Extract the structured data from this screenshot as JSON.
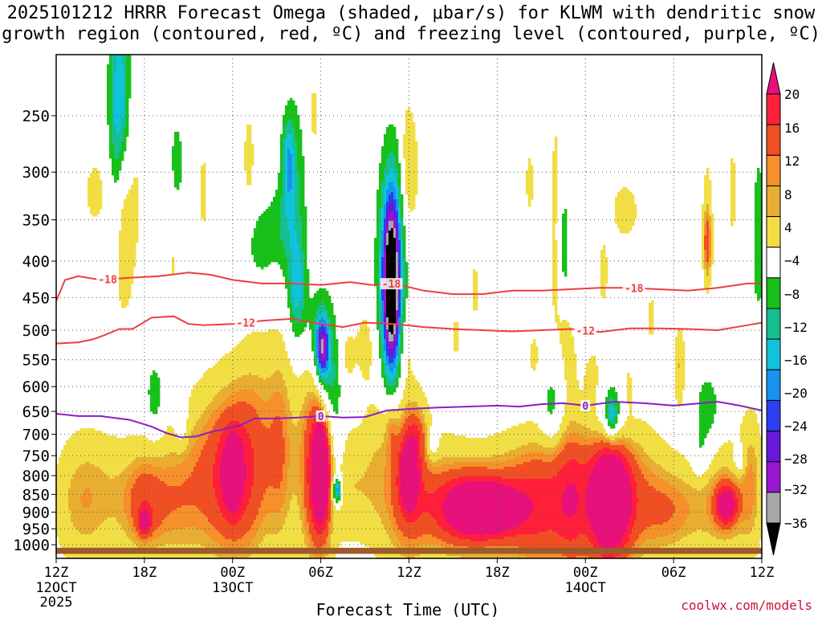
{
  "chart_data": {
    "type": "heatmap",
    "title_line1": "2025101212 HRRR Forecast Omega (shaded, μbar/s) for KLWM with dendritic snow",
    "title_line2": "growth region (contoured, red, ºC) and freezing level (contoured, purple, ºC)",
    "xlabel": "Forecast Time (UTC)",
    "ylabel": "",
    "x_range_hours": [
      0,
      48
    ],
    "y_range_mb": [
      1050,
      200
    ],
    "y_ticks": [
      250,
      300,
      350,
      400,
      450,
      500,
      550,
      600,
      650,
      700,
      750,
      800,
      850,
      900,
      950,
      1000
    ],
    "x_ticks": [
      {
        "hour": 0,
        "label": "12Z",
        "sub1": "12OCT",
        "sub2": "2025"
      },
      {
        "hour": 6,
        "label": "18Z",
        "sub1": "",
        "sub2": ""
      },
      {
        "hour": 12,
        "label": "00Z",
        "sub1": "13OCT",
        "sub2": ""
      },
      {
        "hour": 18,
        "label": "06Z",
        "sub1": "",
        "sub2": ""
      },
      {
        "hour": 24,
        "label": "12Z",
        "sub1": "",
        "sub2": ""
      },
      {
        "hour": 30,
        "label": "18Z",
        "sub1": "",
        "sub2": ""
      },
      {
        "hour": 36,
        "label": "00Z",
        "sub1": "14OCT",
        "sub2": ""
      },
      {
        "hour": 42,
        "label": "06Z",
        "sub1": "",
        "sub2": ""
      },
      {
        "hour": 48,
        "label": "12Z",
        "sub1": "",
        "sub2": ""
      }
    ],
    "colorbar": {
      "labels": [
        "20",
        "16",
        "12",
        "8",
        "4",
        "−4",
        "−8",
        "−12",
        "−16",
        "−20",
        "−24",
        "−28",
        "−32",
        "−36"
      ],
      "bins": [
        {
          "min": 20,
          "max": 24,
          "color": "#e8107a"
        },
        {
          "min": 16,
          "max": 20,
          "color": "#ff1f3a"
        },
        {
          "min": 12,
          "max": 16,
          "color": "#f04f23"
        },
        {
          "min": 10,
          "max": 12,
          "color": "#f5902a"
        },
        {
          "min": 8,
          "max": 10,
          "color": "#e8ae32"
        },
        {
          "min": 4,
          "max": 8,
          "color": "#f1de45"
        },
        {
          "min": -4,
          "max": 4,
          "color": "#ffffff"
        },
        {
          "min": -8,
          "max": -4,
          "color": "#18c11a"
        },
        {
          "min": -12,
          "max": -8,
          "color": "#16bf8f"
        },
        {
          "min": -16,
          "max": -12,
          "color": "#10c3dc"
        },
        {
          "min": -20,
          "max": -16,
          "color": "#1793ee"
        },
        {
          "min": -24,
          "max": -20,
          "color": "#2b3ef0"
        },
        {
          "min": -28,
          "max": -24,
          "color": "#6619d8"
        },
        {
          "min": -32,
          "max": -28,
          "color": "#9b14cf"
        },
        {
          "min": -36,
          "max": -32,
          "color": "#a8a8a8"
        },
        {
          "min": -40,
          "max": -36,
          "color": "#000000"
        }
      ]
    },
    "omega_features": [
      {
        "hour": 4.3,
        "p": 245,
        "dh": 0.5,
        "dp": 70,
        "peak": -16
      },
      {
        "hour": 4.5,
        "p": 310,
        "dh": 0.3,
        "dp": 40,
        "peak": 5
      },
      {
        "hour": 2.7,
        "p": 320,
        "dh": 0.9,
        "dp": 40,
        "peak": 5
      },
      {
        "hour": 4.5,
        "p": 400,
        "dh": 0.5,
        "dp": 70,
        "peak": 6
      },
      {
        "hour": 5.2,
        "p": 320,
        "dh": 0.6,
        "dp": 80,
        "peak": 5
      },
      {
        "hour": 8.2,
        "p": 300,
        "dh": 0.4,
        "dp": 50,
        "peak": -6
      },
      {
        "hour": 8.0,
        "p": 390,
        "dh": 0.5,
        "dp": 60,
        "peak": 5
      },
      {
        "hour": 6.7,
        "p": 620,
        "dh": 0.4,
        "dp": 50,
        "peak": -8
      },
      {
        "hour": 8.5,
        "p": 670,
        "dh": 0.3,
        "dp": 40,
        "peak": -6
      },
      {
        "hour": 10.0,
        "p": 320,
        "dh": 0.3,
        "dp": 50,
        "peak": 5
      },
      {
        "hour": 13.1,
        "p": 285,
        "dh": 0.4,
        "dp": 50,
        "peak": 5
      },
      {
        "hour": 13.8,
        "p": 380,
        "dh": 0.6,
        "dp": 30,
        "peak": -7
      },
      {
        "hour": 15.2,
        "p": 360,
        "dh": 0.8,
        "dp": 40,
        "peak": -6
      },
      {
        "hour": 16.2,
        "p": 330,
        "dh": 0.6,
        "dp": 90,
        "peak": -8
      },
      {
        "hour": 15.8,
        "p": 290,
        "dh": 0.3,
        "dp": 30,
        "peak": -12
      },
      {
        "hour": 16.4,
        "p": 440,
        "dh": 0.4,
        "dp": 50,
        "peak": -12
      },
      {
        "hour": 17.5,
        "p": 250,
        "dh": 0.3,
        "dp": 40,
        "peak": 5
      },
      {
        "hour": 18.0,
        "p": 500,
        "dh": 0.7,
        "dp": 60,
        "peak": -10
      },
      {
        "hour": 18.1,
        "p": 530,
        "dh": 0.3,
        "dp": 35,
        "peak": -26
      },
      {
        "hour": 18.5,
        "p": 590,
        "dh": 0.5,
        "dp": 60,
        "peak": -9
      },
      {
        "hour": 19.0,
        "p": 720,
        "dh": 0.4,
        "dp": 140,
        "peak": -9
      },
      {
        "hour": 19.1,
        "p": 840,
        "dh": 0.2,
        "dp": 25,
        "peak": -22
      },
      {
        "hour": 19.8,
        "p": 540,
        "dh": 0.4,
        "dp": 40,
        "peak": 5
      },
      {
        "hour": 21.0,
        "p": 520,
        "dh": 0.5,
        "dp": 50,
        "peak": 5
      },
      {
        "hour": 22.8,
        "p": 430,
        "dh": 0.4,
        "dp": 90,
        "peak": -39
      },
      {
        "hour": 22.8,
        "p": 440,
        "dh": 0.7,
        "dp": 160,
        "peak": -14
      },
      {
        "hour": 23.8,
        "p": 290,
        "dh": 0.3,
        "dp": 50,
        "peak": 6
      },
      {
        "hour": 23.8,
        "p": 520,
        "dh": 0.3,
        "dp": 40,
        "peak": 5
      },
      {
        "hour": 24.3,
        "p": 300,
        "dh": 0.4,
        "dp": 60,
        "peak": 5
      },
      {
        "hour": 27.2,
        "p": 510,
        "dh": 0.3,
        "dp": 40,
        "peak": 5
      },
      {
        "hour": 28.5,
        "p": 440,
        "dh": 0.3,
        "dp": 50,
        "peak": 5
      },
      {
        "hour": 32.2,
        "p": 310,
        "dh": 0.3,
        "dp": 40,
        "peak": 5
      },
      {
        "hour": 32.5,
        "p": 540,
        "dh": 0.3,
        "dp": 40,
        "peak": 5
      },
      {
        "hour": 34.0,
        "p": 300,
        "dh": 0.3,
        "dp": 60,
        "peak": 5
      },
      {
        "hour": 34.0,
        "p": 430,
        "dh": 0.3,
        "dp": 70,
        "peak": 5
      },
      {
        "hour": 34.5,
        "p": 380,
        "dh": 0.3,
        "dp": 60,
        "peak": -7
      },
      {
        "hour": 34.6,
        "p": 500,
        "dh": 0.3,
        "dp": 40,
        "peak": 5
      },
      {
        "hour": 33.7,
        "p": 640,
        "dh": 0.5,
        "dp": 50,
        "peak": -8
      },
      {
        "hour": 35.0,
        "p": 560,
        "dh": 0.3,
        "dp": 50,
        "peak": 5
      },
      {
        "hour": 36.5,
        "p": 580,
        "dh": 0.4,
        "dp": 40,
        "peak": 5
      },
      {
        "hour": 37.2,
        "p": 420,
        "dh": 0.3,
        "dp": 40,
        "peak": 5
      },
      {
        "hour": 37.8,
        "p": 650,
        "dh": 0.9,
        "dp": 70,
        "peak": -9
      },
      {
        "hour": 37.8,
        "p": 660,
        "dh": 0.3,
        "dp": 30,
        "peak": -13
      },
      {
        "hour": 38.7,
        "p": 340,
        "dh": 1.1,
        "dp": 40,
        "peak": 5
      },
      {
        "hour": 38.9,
        "p": 600,
        "dh": 0.3,
        "dp": 40,
        "peak": 5
      },
      {
        "hour": 40.5,
        "p": 480,
        "dh": 0.3,
        "dp": 40,
        "peak": 5
      },
      {
        "hour": 42.4,
        "p": 560,
        "dh": 0.3,
        "dp": 60,
        "peak": 8
      },
      {
        "hour": 44.3,
        "p": 350,
        "dh": 0.3,
        "dp": 70,
        "peak": 6
      },
      {
        "hour": 44.3,
        "p": 380,
        "dh": 0.2,
        "dp": 30,
        "peak": 10
      },
      {
        "hour": 44.3,
        "p": 650,
        "dh": 0.6,
        "dp": 60,
        "peak": -8
      },
      {
        "hour": 43.8,
        "p": 750,
        "dh": 0.4,
        "dp": 40,
        "peak": -6
      },
      {
        "hour": 46.0,
        "p": 320,
        "dh": 0.3,
        "dp": 60,
        "peak": 5
      },
      {
        "hour": 47.8,
        "p": 380,
        "dh": 0.3,
        "dp": 90,
        "peak": -8
      },
      {
        "hour": 47.8,
        "p": 520,
        "dh": 0.3,
        "dp": 50,
        "peak": 5
      },
      {
        "hour": 46.5,
        "p": 760,
        "dh": 0.3,
        "dp": 30,
        "peak": -7
      },
      {
        "hour": 22.8,
        "p": 680,
        "dh": 0.3,
        "dp": 40,
        "peak": 6
      },
      {
        "hour": 24.5,
        "p": 700,
        "dh": 0.5,
        "dp": 40,
        "peak": 6
      },
      {
        "hour": 25.6,
        "p": 720,
        "dh": 0.3,
        "dp": 30,
        "peak": -6
      }
    ],
    "omega_bands": [
      {
        "hour": 1.5,
        "p": 870,
        "dh": 1.4,
        "dp": 160,
        "peak": 7
      },
      {
        "hour": 4.0,
        "p": 850,
        "dh": 2.0,
        "dp": 150,
        "peak": 6
      },
      {
        "hour": 6.0,
        "p": 880,
        "dh": 1.0,
        "dp": 110,
        "peak": 10
      },
      {
        "hour": 6.0,
        "p": 930,
        "dh": 0.3,
        "dp": 25,
        "peak": 13
      },
      {
        "hour": 8.0,
        "p": 870,
        "dh": 1.2,
        "dp": 140,
        "peak": 7
      },
      {
        "hour": 10.0,
        "p": 800,
        "dh": 1.5,
        "dp": 200,
        "peak": 8
      },
      {
        "hour": 12.0,
        "p": 800,
        "dh": 1.3,
        "dp": 180,
        "peak": 13
      },
      {
        "hour": 12.0,
        "p": 790,
        "dh": 0.4,
        "dp": 60,
        "peak": 19
      },
      {
        "hour": 13.8,
        "p": 740,
        "dh": 1.3,
        "dp": 240,
        "peak": 9
      },
      {
        "hour": 15.3,
        "p": 730,
        "dh": 0.6,
        "dp": 210,
        "peak": 7
      },
      {
        "hour": 17.5,
        "p": 760,
        "dh": 1.0,
        "dp": 240,
        "peak": 9
      },
      {
        "hour": 18.0,
        "p": 800,
        "dh": 0.8,
        "dp": 180,
        "peak": 12
      },
      {
        "hour": 18.0,
        "p": 790,
        "dh": 0.35,
        "dp": 80,
        "peak": 21
      },
      {
        "hour": 20.2,
        "p": 830,
        "dh": 1.2,
        "dp": 130,
        "peak": 7
      },
      {
        "hour": 22.5,
        "p": 740,
        "dh": 1.0,
        "dp": 230,
        "peak": 8
      },
      {
        "hour": 24.0,
        "p": 790,
        "dh": 0.9,
        "dp": 170,
        "peak": 12
      },
      {
        "hour": 24.0,
        "p": 800,
        "dh": 0.35,
        "dp": 50,
        "peak": 21
      },
      {
        "hour": 26.0,
        "p": 870,
        "dh": 1.8,
        "dp": 160,
        "peak": 8
      },
      {
        "hour": 28.2,
        "p": 890,
        "dh": 1.8,
        "dp": 80,
        "peak": 18
      },
      {
        "hour": 29.5,
        "p": 890,
        "dh": 1.2,
        "dp": 40,
        "peak": 22
      },
      {
        "hour": 31.0,
        "p": 880,
        "dh": 2.2,
        "dp": 150,
        "peak": 10
      },
      {
        "hour": 33.3,
        "p": 880,
        "dh": 1.6,
        "dp": 150,
        "peak": 11
      },
      {
        "hour": 35.0,
        "p": 850,
        "dh": 0.7,
        "dp": 160,
        "peak": 7
      },
      {
        "hour": 37.2,
        "p": 860,
        "dh": 1.7,
        "dp": 220,
        "peak": 13
      },
      {
        "hour": 37.7,
        "p": 860,
        "dh": 0.9,
        "dp": 110,
        "peak": 23
      },
      {
        "hour": 40.0,
        "p": 860,
        "dh": 1.6,
        "dp": 160,
        "peak": 7
      },
      {
        "hour": 42.0,
        "p": 900,
        "dh": 1.4,
        "dp": 100,
        "peak": 8
      },
      {
        "hour": 45.4,
        "p": 870,
        "dh": 1.5,
        "dp": 140,
        "peak": 10
      },
      {
        "hour": 45.6,
        "p": 880,
        "dh": 0.5,
        "dp": 40,
        "peak": 18
      },
      {
        "hour": 47.3,
        "p": 800,
        "dh": 0.6,
        "dp": 160,
        "peak": 7
      }
    ],
    "contours": [
      {
        "label": "-18",
        "color": "#ec3f3f",
        "x": [
          0,
          0.6,
          1.5,
          3,
          5,
          7,
          9,
          10.5,
          12,
          14,
          16,
          18,
          20,
          21.5,
          23,
          25,
          27,
          29,
          31,
          33,
          35,
          37,
          39,
          41,
          43,
          45,
          47,
          48
        ],
        "y": [
          455,
          425,
          420,
          425,
          422,
          420,
          415,
          418,
          425,
          430,
          430,
          432,
          428,
          432,
          430,
          440,
          445,
          445,
          440,
          440,
          438,
          436,
          436,
          438,
          440,
          436,
          430,
          430
        ],
        "label_positions": [
          3.5,
          22.8,
          39.3
        ]
      },
      {
        "label": "-12",
        "color": "#ec3f3f",
        "x": [
          0,
          1.5,
          2.5,
          3.3,
          4.3,
          5.2,
          6.5,
          8,
          9,
          10,
          12,
          14,
          16,
          18,
          19.5,
          21,
          23,
          25,
          27,
          29,
          31,
          33,
          35,
          37,
          39,
          41,
          43,
          45,
          47,
          48
        ],
        "y": [
          522,
          520,
          515,
          508,
          498,
          498,
          480,
          478,
          490,
          492,
          490,
          485,
          482,
          490,
          495,
          488,
          490,
          495,
          498,
          500,
          502,
          500,
          498,
          503,
          497,
          497,
          498,
          500,
          492,
          488
        ],
        "label_positions": [
          12.9,
          36.0
        ]
      },
      {
        "label": "0",
        "color": "#8a1fc3",
        "x": [
          0,
          1.5,
          3,
          5,
          6.5,
          7.5,
          8.5,
          9.5,
          10.5,
          11.5,
          12.5,
          13.5,
          15,
          16.5,
          18,
          19.5,
          21,
          22.5,
          24,
          26,
          28,
          30,
          31.5,
          33,
          34.5,
          36,
          38,
          40,
          42,
          43.5,
          45,
          46.5,
          48
        ],
        "y": [
          655,
          660,
          660,
          668,
          683,
          697,
          707,
          705,
          695,
          688,
          680,
          665,
          665,
          663,
          660,
          663,
          662,
          648,
          645,
          642,
          640,
          638,
          640,
          635,
          633,
          638,
          630,
          633,
          638,
          634,
          630,
          638,
          648
        ],
        "label_positions": [
          18.0,
          36.0
        ]
      }
    ],
    "surface_bar": {
      "p_top": 1010,
      "p_bottom": 1030,
      "color": "#9d5a2a"
    }
  },
  "credit": "coolwx.com/models"
}
